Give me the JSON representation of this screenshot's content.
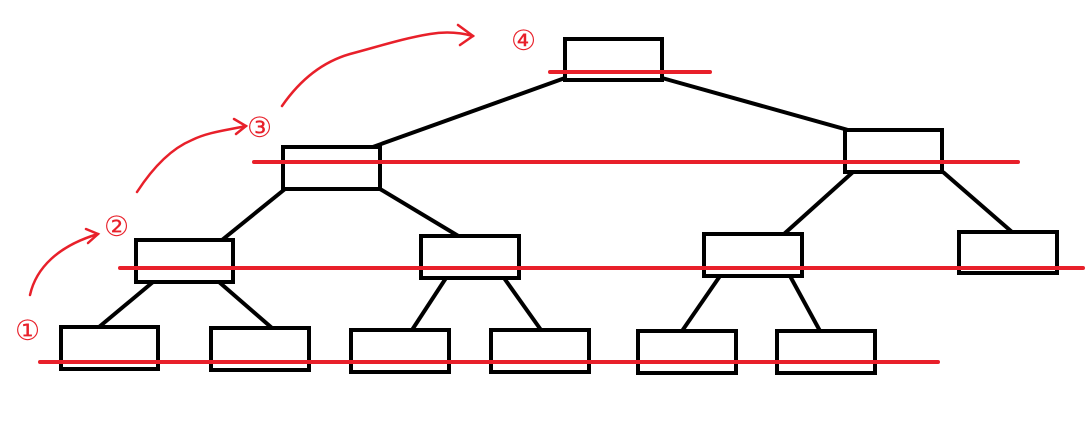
{
  "colors": {
    "node_stroke": "#000000",
    "edge_stroke": "#000000",
    "level_line": "#e8202a",
    "annotation": "#e8202a",
    "background": "#ffffff"
  },
  "tree": {
    "levels": 4,
    "node_count": 13,
    "edges": [
      [
        "root",
        "l2a"
      ],
      [
        "root",
        "l2b"
      ],
      [
        "l2a",
        "l3a"
      ],
      [
        "l2a",
        "l3b"
      ],
      [
        "l2b",
        "l3c"
      ],
      [
        "l2b",
        "l3d"
      ],
      [
        "l3a",
        "l4a"
      ],
      [
        "l3a",
        "l4b"
      ],
      [
        "l3b",
        "l4c"
      ],
      [
        "l3b",
        "l4d"
      ],
      [
        "l3c",
        "l4e"
      ],
      [
        "l3c",
        "l4f"
      ]
    ]
  },
  "steps": [
    {
      "label": "①",
      "level": 4
    },
    {
      "label": "②",
      "level": 3
    },
    {
      "label": "③",
      "level": 2
    },
    {
      "label": "④",
      "level": 1
    }
  ]
}
